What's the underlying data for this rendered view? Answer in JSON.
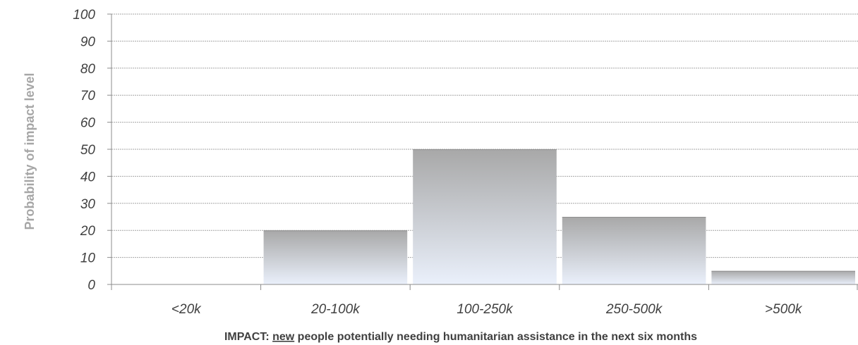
{
  "chart_data": {
    "type": "bar",
    "categories": [
      "<20k",
      "20-100k",
      "100-250k",
      "250-500k",
      ">500k"
    ],
    "values": [
      0,
      20,
      50,
      25,
      5
    ],
    "ylabel": "Probability of impact level",
    "xlabel_parts": {
      "before": "IMPACT: ",
      "emphasis": "new",
      "after": " people potentially needing humanitarian assistance in the next six months"
    },
    "ylim": [
      0,
      100
    ],
    "yticks": [
      "0",
      "10",
      "20",
      "30",
      "40",
      "50",
      "60",
      "70",
      "80",
      "90",
      "100"
    ],
    "grid": true,
    "legend": "none",
    "colors": {
      "bar_top": "#a8a8a8",
      "bar_bottom": "#eaf0fb",
      "grid": "#a6a6a6",
      "axis": "#8c8c8c",
      "tick_text": "#404040",
      "ylabel_text": "#a6a6a6"
    }
  }
}
